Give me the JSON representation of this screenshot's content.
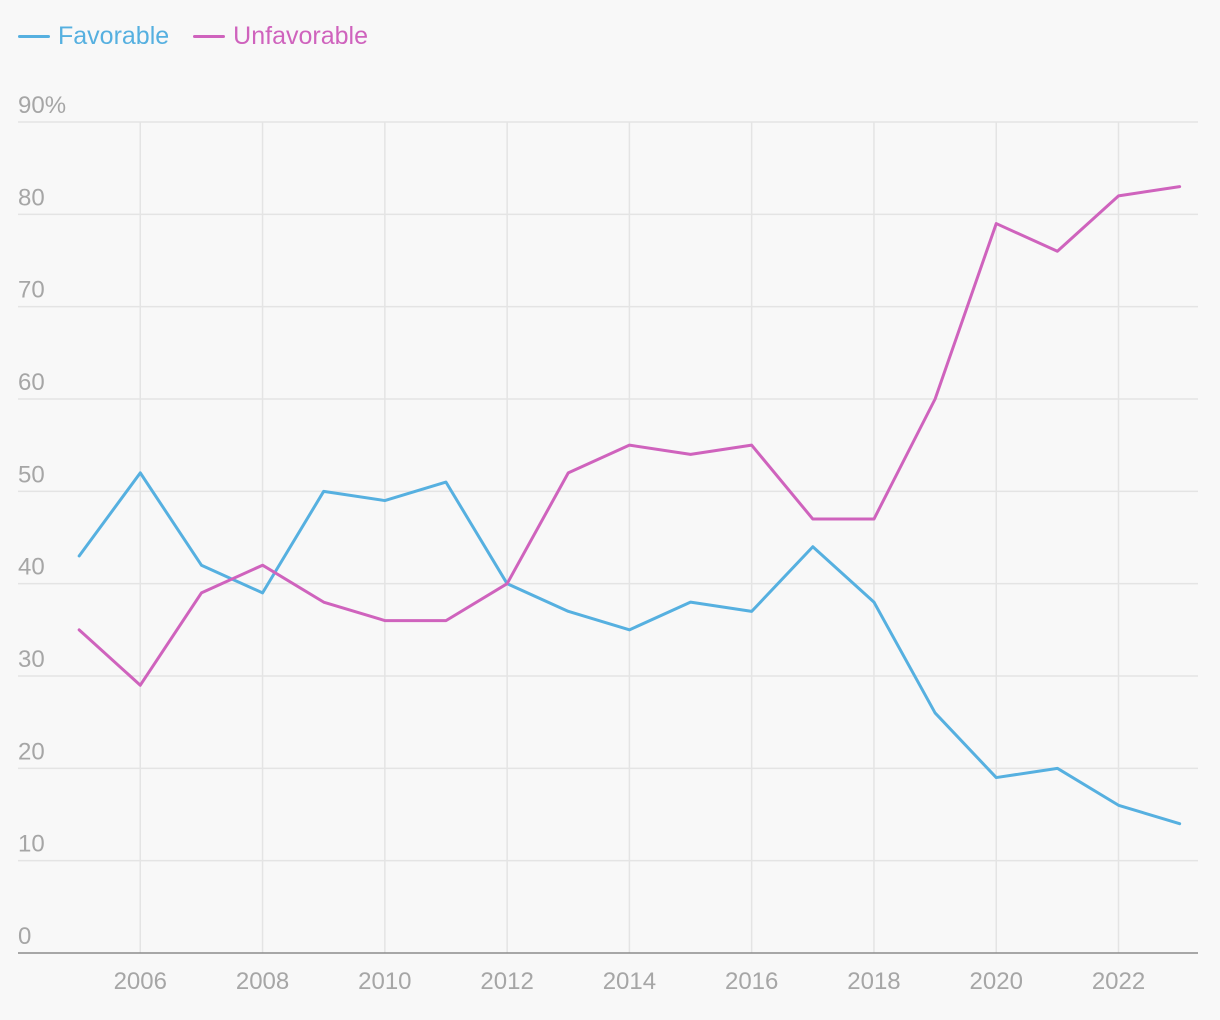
{
  "legend": [
    {
      "name": "Favorable",
      "color": "#56b0e0"
    },
    {
      "name": "Unfavorable",
      "color": "#cf63bd"
    }
  ],
  "chart_data": {
    "type": "line",
    "title": "",
    "xlabel": "",
    "ylabel": "",
    "x": [
      2005,
      2006,
      2007,
      2008,
      2009,
      2010,
      2011,
      2012,
      2013,
      2014,
      2015,
      2016,
      2017,
      2018,
      2019,
      2020,
      2021,
      2022,
      2023
    ],
    "series": [
      {
        "name": "Favorable",
        "color": "#56b0e0",
        "values": [
          43,
          52,
          42,
          39,
          50,
          49,
          51,
          40,
          37,
          35,
          38,
          37,
          44,
          38,
          26,
          19,
          20,
          16,
          14
        ]
      },
      {
        "name": "Unfavorable",
        "color": "#cf63bd",
        "values": [
          35,
          29,
          39,
          42,
          38,
          36,
          36,
          40,
          52,
          55,
          54,
          55,
          47,
          47,
          60,
          79,
          76,
          82,
          83
        ]
      }
    ],
    "ylim": [
      0,
      90
    ],
    "xlim": [
      2004,
      2023.3
    ],
    "y_ticks": [
      0,
      10,
      20,
      30,
      40,
      50,
      60,
      70,
      80,
      90
    ],
    "y_tick_labels": [
      "0",
      "10",
      "20",
      "30",
      "40",
      "50",
      "60",
      "70",
      "80",
      "90%"
    ],
    "x_ticks": [
      2006,
      2008,
      2010,
      2012,
      2014,
      2016,
      2018,
      2020,
      2022
    ],
    "x_tick_labels": [
      "2006",
      "2008",
      "2010",
      "2012",
      "2014",
      "2016",
      "2018",
      "2020",
      "2022"
    ],
    "grid": true,
    "legend_position": "top-left"
  }
}
